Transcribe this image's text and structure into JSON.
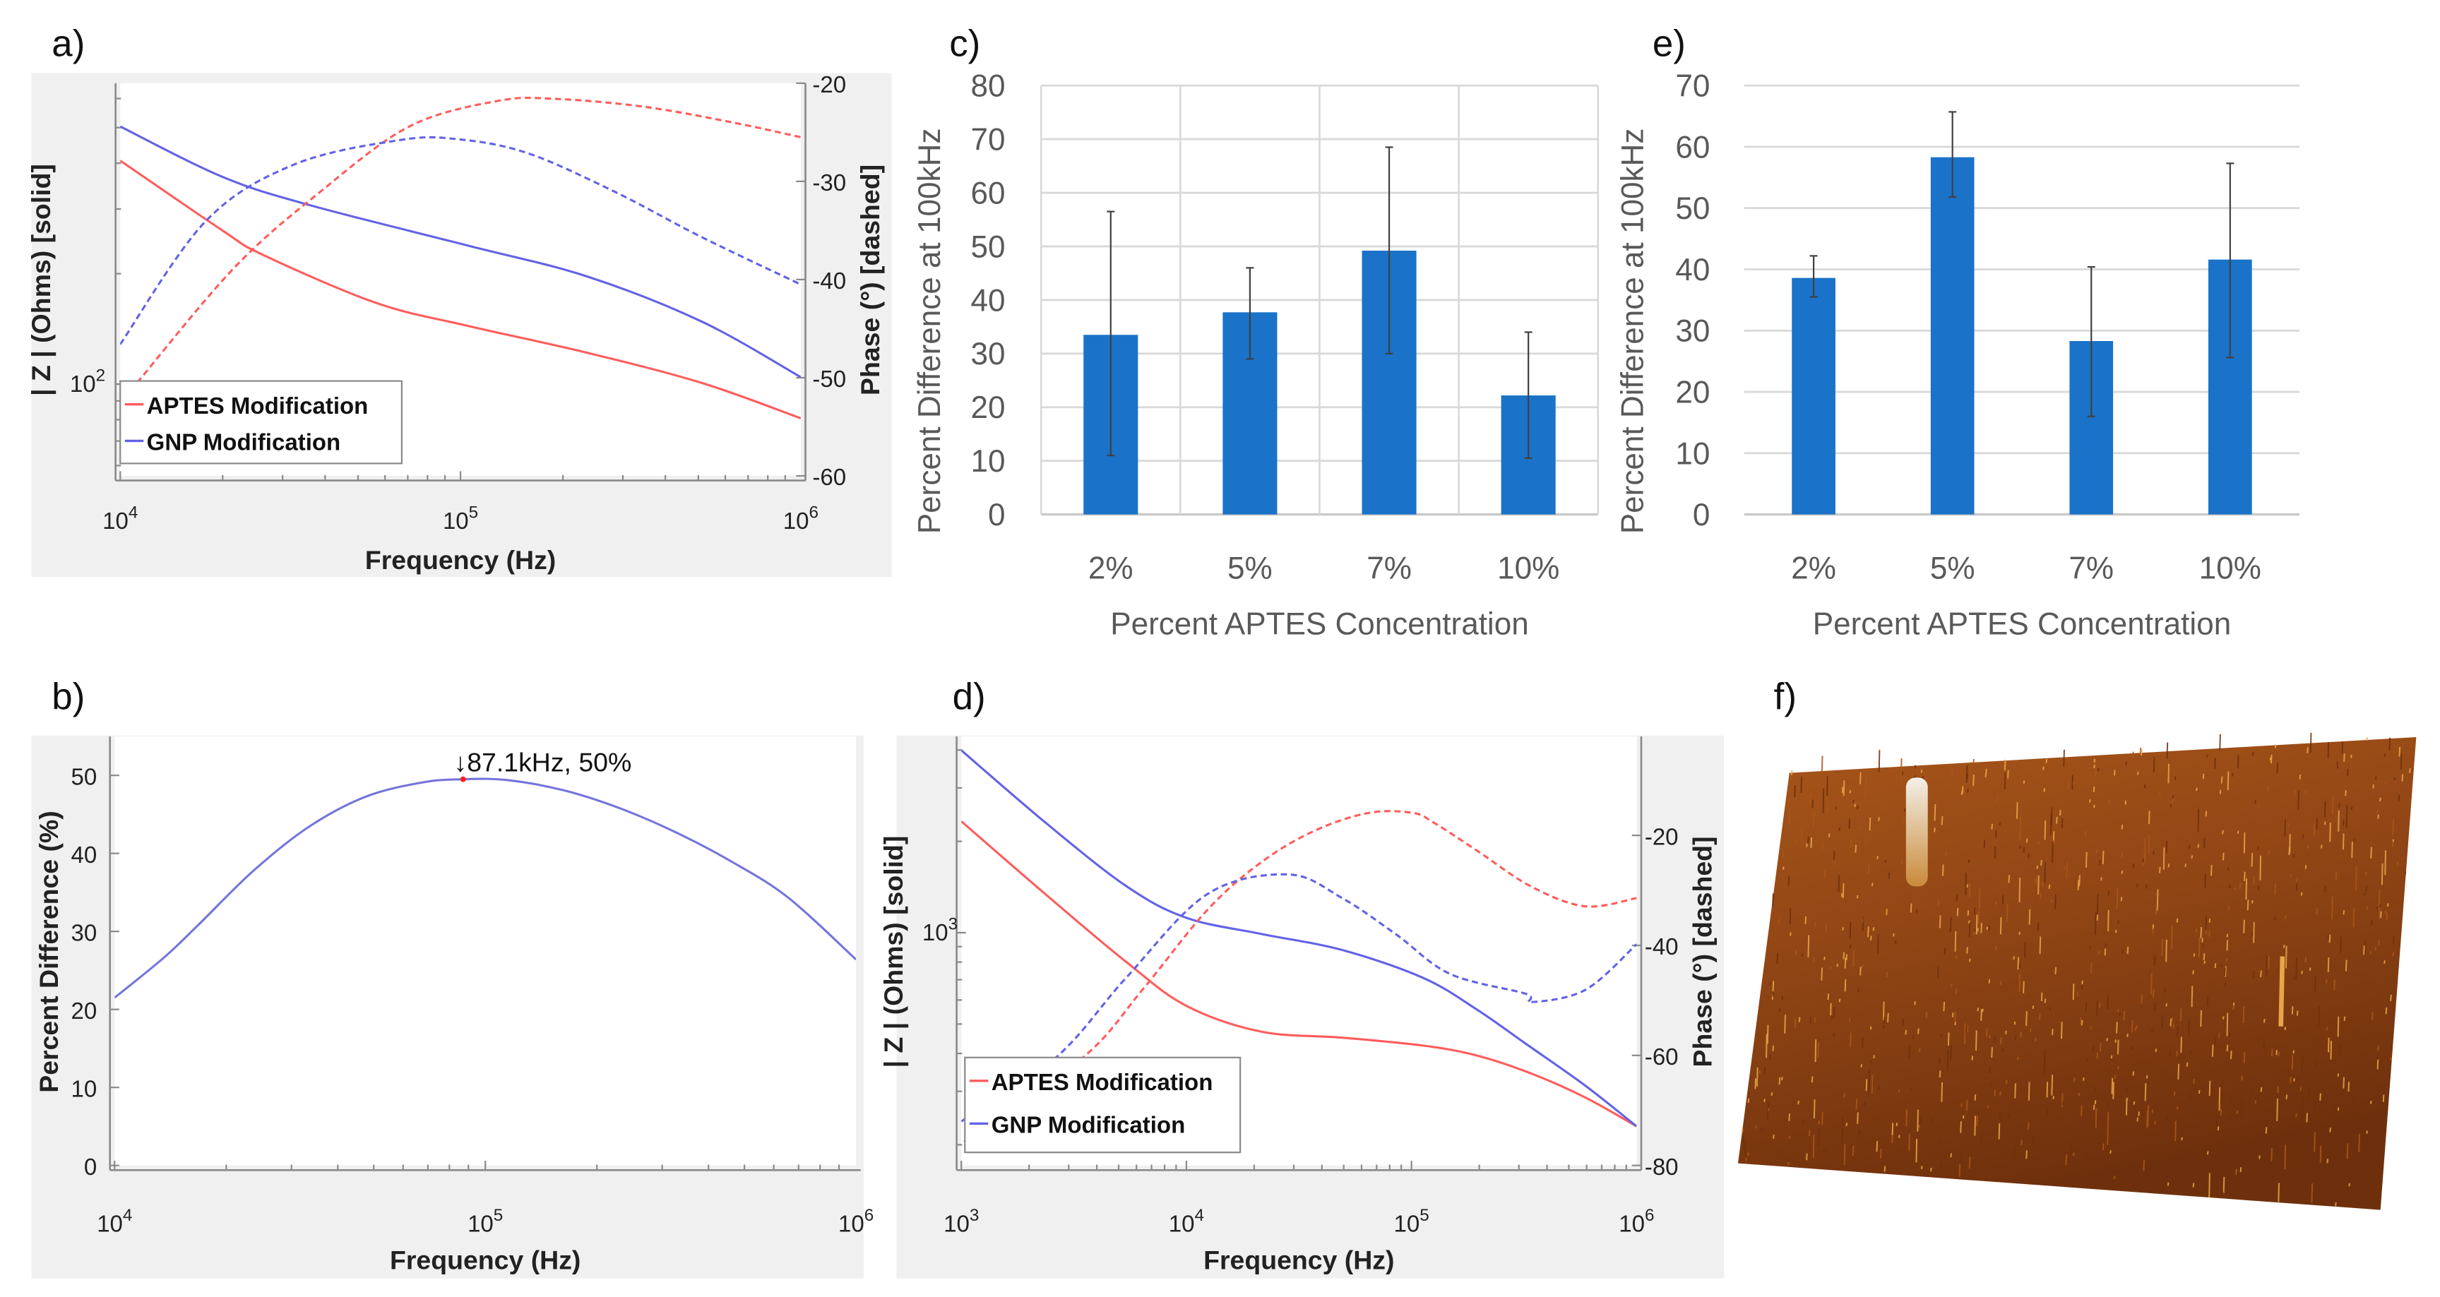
{
  "panel_labels": {
    "a": "a)",
    "b": "b)",
    "c": "c)",
    "d": "d)",
    "e": "e)",
    "f": "f)"
  },
  "chart_data": [
    {
      "id": "a",
      "type": "line",
      "xlabel": "Frequency (Hz)",
      "ylabel_left": "| Z | (Ohms) [solid]",
      "ylabel_right": "Phase (°) [dashed]",
      "x_scale": "log",
      "xlim_log10": [
        4,
        6
      ],
      "ylim_left_log10": [
        1.75,
        2.82
      ],
      "ylim_right": [
        -60,
        -20
      ],
      "x_ticks": [
        {
          "base": "10",
          "exp": "4",
          "log10": 4
        },
        {
          "base": "10",
          "exp": "5",
          "log10": 5
        },
        {
          "base": "10",
          "exp": "6",
          "log10": 6
        }
      ],
      "y_left_ticks": [
        {
          "base": "10",
          "exp": "2",
          "log10": 2
        }
      ],
      "y_right_ticks": [
        -20,
        -30,
        -40,
        -50,
        -60
      ],
      "legend": [
        "APTES Modification",
        "GNP Modification"
      ],
      "series": [
        {
          "name": "APTES Modification",
          "quantity": "|Z| log10",
          "axis": "left",
          "style": "solid",
          "color": "#ff5c5c",
          "points": [
            [
              4,
              2.609
            ],
            [
              4.3,
              2.419
            ],
            [
              4.42,
              2.352
            ],
            [
              4.75,
              2.222
            ],
            [
              5.02,
              2.159
            ],
            [
              5.37,
              2.086
            ],
            [
              5.71,
              2.003
            ],
            [
              6,
              1.907
            ]
          ]
        },
        {
          "name": "GNP Modification",
          "quantity": "|Z| log10",
          "axis": "left",
          "style": "solid",
          "color": "#6262e6",
          "points": [
            [
              4,
              2.702
            ],
            [
              4.3,
              2.565
            ],
            [
              4.56,
              2.487
            ],
            [
              5.02,
              2.378
            ],
            [
              5.37,
              2.294
            ],
            [
              5.71,
              2.17
            ],
            [
              6,
              2.019
            ]
          ]
        },
        {
          "name": "APTES Modification",
          "quantity": "phase",
          "axis": "right",
          "style": "dashed",
          "color": "#ff5c5c",
          "points": [
            [
              4.05,
              -50.5
            ],
            [
              4.335,
              -38.8
            ],
            [
              4.59,
              -31
            ],
            [
              4.85,
              -24.4
            ],
            [
              5.11,
              -21.8
            ],
            [
              5.28,
              -21.6
            ],
            [
              5.54,
              -22.4
            ],
            [
              5.8,
              -24
            ],
            [
              6,
              -25.5
            ]
          ]
        },
        {
          "name": "GNP Modification",
          "quantity": "phase",
          "axis": "right",
          "style": "dashed",
          "color": "#6262e6",
          "points": [
            [
              4,
              -46.6
            ],
            [
              4.25,
              -34.1
            ],
            [
              4.51,
              -28.3
            ],
            [
              4.82,
              -25.8
            ],
            [
              4.99,
              -25.7
            ],
            [
              5.195,
              -27.1
            ],
            [
              5.45,
              -31
            ],
            [
              5.71,
              -35.7
            ],
            [
              6,
              -40.5
            ]
          ]
        }
      ]
    },
    {
      "id": "b",
      "type": "line",
      "xlabel": "Frequency (Hz)",
      "ylabel_left": "Percent Difference (%)",
      "x_scale": "log",
      "xlim_log10": [
        4,
        6
      ],
      "ylim_left": [
        0,
        55
      ],
      "x_ticks": [
        {
          "base": "10",
          "exp": "4",
          "log10": 4
        },
        {
          "base": "10",
          "exp": "5",
          "log10": 5
        },
        {
          "base": "10",
          "exp": "6",
          "log10": 6
        }
      ],
      "y_left_ticks": [
        0,
        10,
        20,
        30,
        40,
        50
      ],
      "annotation": {
        "text": "↓87.1kHz, 50%",
        "x_hz": 87100,
        "y": 49.5
      },
      "series": [
        {
          "name": "Percent Difference",
          "axis": "left",
          "style": "solid",
          "color": "#7474dc",
          "points": [
            [
              4,
              21.5
            ],
            [
              4.132,
              26.6
            ],
            [
              4.223,
              30.7
            ],
            [
              4.375,
              37.8
            ],
            [
              4.527,
              43.5
            ],
            [
              4.679,
              47.3
            ],
            [
              4.831,
              49.1
            ],
            [
              4.937,
              49.5
            ],
            [
              5.058,
              49.4
            ],
            [
              5.21,
              48.1
            ],
            [
              5.362,
              45.8
            ],
            [
              5.514,
              42.7
            ],
            [
              5.666,
              38.9
            ],
            [
              5.818,
              34.3
            ],
            [
              6,
              26.4
            ]
          ]
        }
      ]
    },
    {
      "id": "c",
      "type": "bar",
      "categories": [
        "2%",
        "5%",
        "7%",
        "10%"
      ],
      "values": [
        33.5,
        37.7,
        49.2,
        22.2
      ],
      "error_low": [
        11,
        29,
        30,
        10.5
      ],
      "error_high": [
        56.5,
        46,
        68.5,
        34
      ],
      "ylim": [
        0,
        80
      ],
      "y_ticks": [
        0,
        10,
        20,
        30,
        40,
        50,
        60,
        70,
        80
      ],
      "ylabel": "Percent Difference at 100kHz",
      "xlabel": "Percent APTES Concentration",
      "color": "#1a73c8"
    },
    {
      "id": "d",
      "type": "line",
      "xlabel": "Frequency (Hz)",
      "ylabel_left": "| Z | (Ohms) [solid]",
      "ylabel_right": "Phase (°) [dashed]",
      "x_scale": "log",
      "xlim_log10": [
        3,
        6
      ],
      "ylim_left_log10": [
        2.233,
        3.647
      ],
      "ylim_right": [
        -80,
        -2
      ],
      "x_ticks": [
        {
          "base": "10",
          "exp": "3",
          "log10": 3
        },
        {
          "base": "10",
          "exp": "4",
          "log10": 4
        },
        {
          "base": "10",
          "exp": "5",
          "log10": 5
        },
        {
          "base": "10",
          "exp": "6",
          "log10": 6
        }
      ],
      "y_left_ticks": [
        {
          "base": "10",
          "exp": "3",
          "log10": 3
        }
      ],
      "y_right_ticks": [
        -20,
        -40,
        -60,
        -80
      ],
      "legend": [
        "APTES Modification",
        "GNP Modification"
      ],
      "series": [
        {
          "name": "APTES Modification",
          "quantity": "|Z| log10",
          "axis": "left",
          "style": "solid",
          "color": "#ff5c5c",
          "points": [
            [
              3,
              3.367
            ],
            [
              3.372,
              3.128
            ],
            [
              3.732,
              2.904
            ],
            [
              4,
              2.759
            ],
            [
              4.332,
              2.674
            ],
            [
              4.692,
              2.654
            ],
            [
              5.052,
              2.628
            ],
            [
              5.292,
              2.595
            ],
            [
              5.532,
              2.536
            ],
            [
              5.772,
              2.457
            ],
            [
              6,
              2.362
            ]
          ]
        },
        {
          "name": "GNP Modification",
          "quantity": "|Z| log10",
          "axis": "left",
          "style": "solid",
          "color": "#6262e6",
          "points": [
            [
              3,
              3.601
            ],
            [
              3.372,
              3.364
            ],
            [
              3.732,
              3.154
            ],
            [
              4,
              3.049
            ],
            [
              4.332,
              2.996
            ],
            [
              4.692,
              2.943
            ],
            [
              5.052,
              2.851
            ],
            [
              5.292,
              2.746
            ],
            [
              5.508,
              2.634
            ],
            [
              5.772,
              2.496
            ],
            [
              6,
              2.362
            ]
          ]
        },
        {
          "name": "APTES Modification",
          "quantity": "phase",
          "axis": "right",
          "style": "dashed",
          "color": "#ff5c5c",
          "points": [
            [
              3.012,
              -75.7
            ],
            [
              3.54,
              -60.4
            ],
            [
              3.804,
              -48.1
            ],
            [
              4.092,
              -33.6
            ],
            [
              4.332,
              -24.9
            ],
            [
              4.572,
              -19.1
            ],
            [
              4.812,
              -15.9
            ],
            [
              5.004,
              -15.9
            ],
            [
              5.1,
              -17.7
            ],
            [
              5.292,
              -22.8
            ],
            [
              5.532,
              -29.3
            ],
            [
              5.772,
              -32.9
            ],
            [
              6,
              -31.4
            ]
          ]
        },
        {
          "name": "GNP Modification",
          "quantity": "phase",
          "axis": "right",
          "style": "dashed",
          "color": "#6262e6",
          "points": [
            [
              3,
              -72
            ],
            [
              3.42,
              -60.4
            ],
            [
              3.732,
              -45.9
            ],
            [
              4.092,
              -30.7
            ],
            [
              4.452,
              -27.1
            ],
            [
              4.692,
              -31.4
            ],
            [
              4.932,
              -38
            ],
            [
              5.172,
              -45.2
            ],
            [
              5.508,
              -48.8
            ],
            [
              5.532,
              -50.3
            ],
            [
              5.772,
              -48.1
            ],
            [
              6,
              -39.8
            ]
          ]
        }
      ]
    },
    {
      "id": "e",
      "type": "bar",
      "categories": [
        "2%",
        "5%",
        "7%",
        "10%"
      ],
      "values": [
        38.6,
        58.3,
        28.3,
        41.6
      ],
      "error_low": [
        35.5,
        51.8,
        16,
        25.6
      ],
      "error_high": [
        42.2,
        65.7,
        40.4,
        57.3
      ],
      "ylim": [
        0,
        70
      ],
      "y_ticks": [
        0,
        10,
        20,
        30,
        40,
        50,
        60,
        70
      ],
      "ylabel": "Percent Difference at 100kHz",
      "xlabel": "Percent APTES Concentration",
      "color": "#1a73c8"
    }
  ],
  "afm_image": {
    "colors": {
      "dark": "#6e300c",
      "mid": "#a8561a",
      "light": "#e8a64a",
      "peak": "#f4f0e8"
    }
  }
}
